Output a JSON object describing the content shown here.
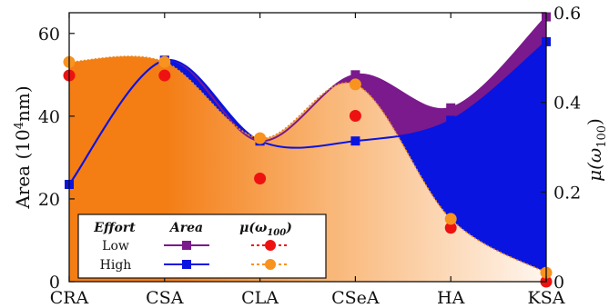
{
  "chart_data": {
    "type": "area",
    "categories": [
      "CRA",
      "CSA",
      "CLA",
      "CSeA",
      "HA",
      "KSA"
    ],
    "y_left": {
      "label_text": "Area (10",
      "label_sup": "4",
      "label_tail": "nm)",
      "range": [
        0,
        65
      ],
      "ticks": [
        0,
        20,
        40,
        60
      ]
    },
    "y_right": {
      "label_main": "μ(ω",
      "label_sub": "100",
      "label_tail": ")",
      "range": [
        0,
        0.6
      ],
      "ticks": [
        0,
        0.2,
        0.4,
        0.6
      ],
      "tick_labels": [
        "0",
        "0.2",
        "0.4",
        "0.6"
      ]
    },
    "series": [
      {
        "name": "Low",
        "metric": "Area",
        "axis": "left",
        "color": "#7b1a8c",
        "marker": "square",
        "values": [
          23.5,
          53.5,
          34,
          50,
          42,
          64
        ]
      },
      {
        "name": "High",
        "metric": "Area",
        "axis": "left",
        "color": "#0a14e0",
        "marker": "square",
        "values": [
          23.5,
          53.5,
          34,
          34,
          39,
          58
        ]
      },
      {
        "name": "Low",
        "metric": "μ(ω100)",
        "axis": "right",
        "color": "#ee1111",
        "marker": "circle",
        "values": [
          0.46,
          0.46,
          0.23,
          0.37,
          0.12,
          0.0
        ]
      },
      {
        "name": "High",
        "metric": "μ(ω100)",
        "axis": "right",
        "color": "#f7931e",
        "marker": "circle",
        "values": [
          0.49,
          0.49,
          0.32,
          0.44,
          0.14,
          0.02
        ]
      }
    ],
    "legend": {
      "placement": "bottom-left",
      "header": [
        "Effort",
        "Area",
        "μ(ω",
        "100",
        ")"
      ],
      "rows": [
        "Low",
        "High"
      ]
    }
  }
}
